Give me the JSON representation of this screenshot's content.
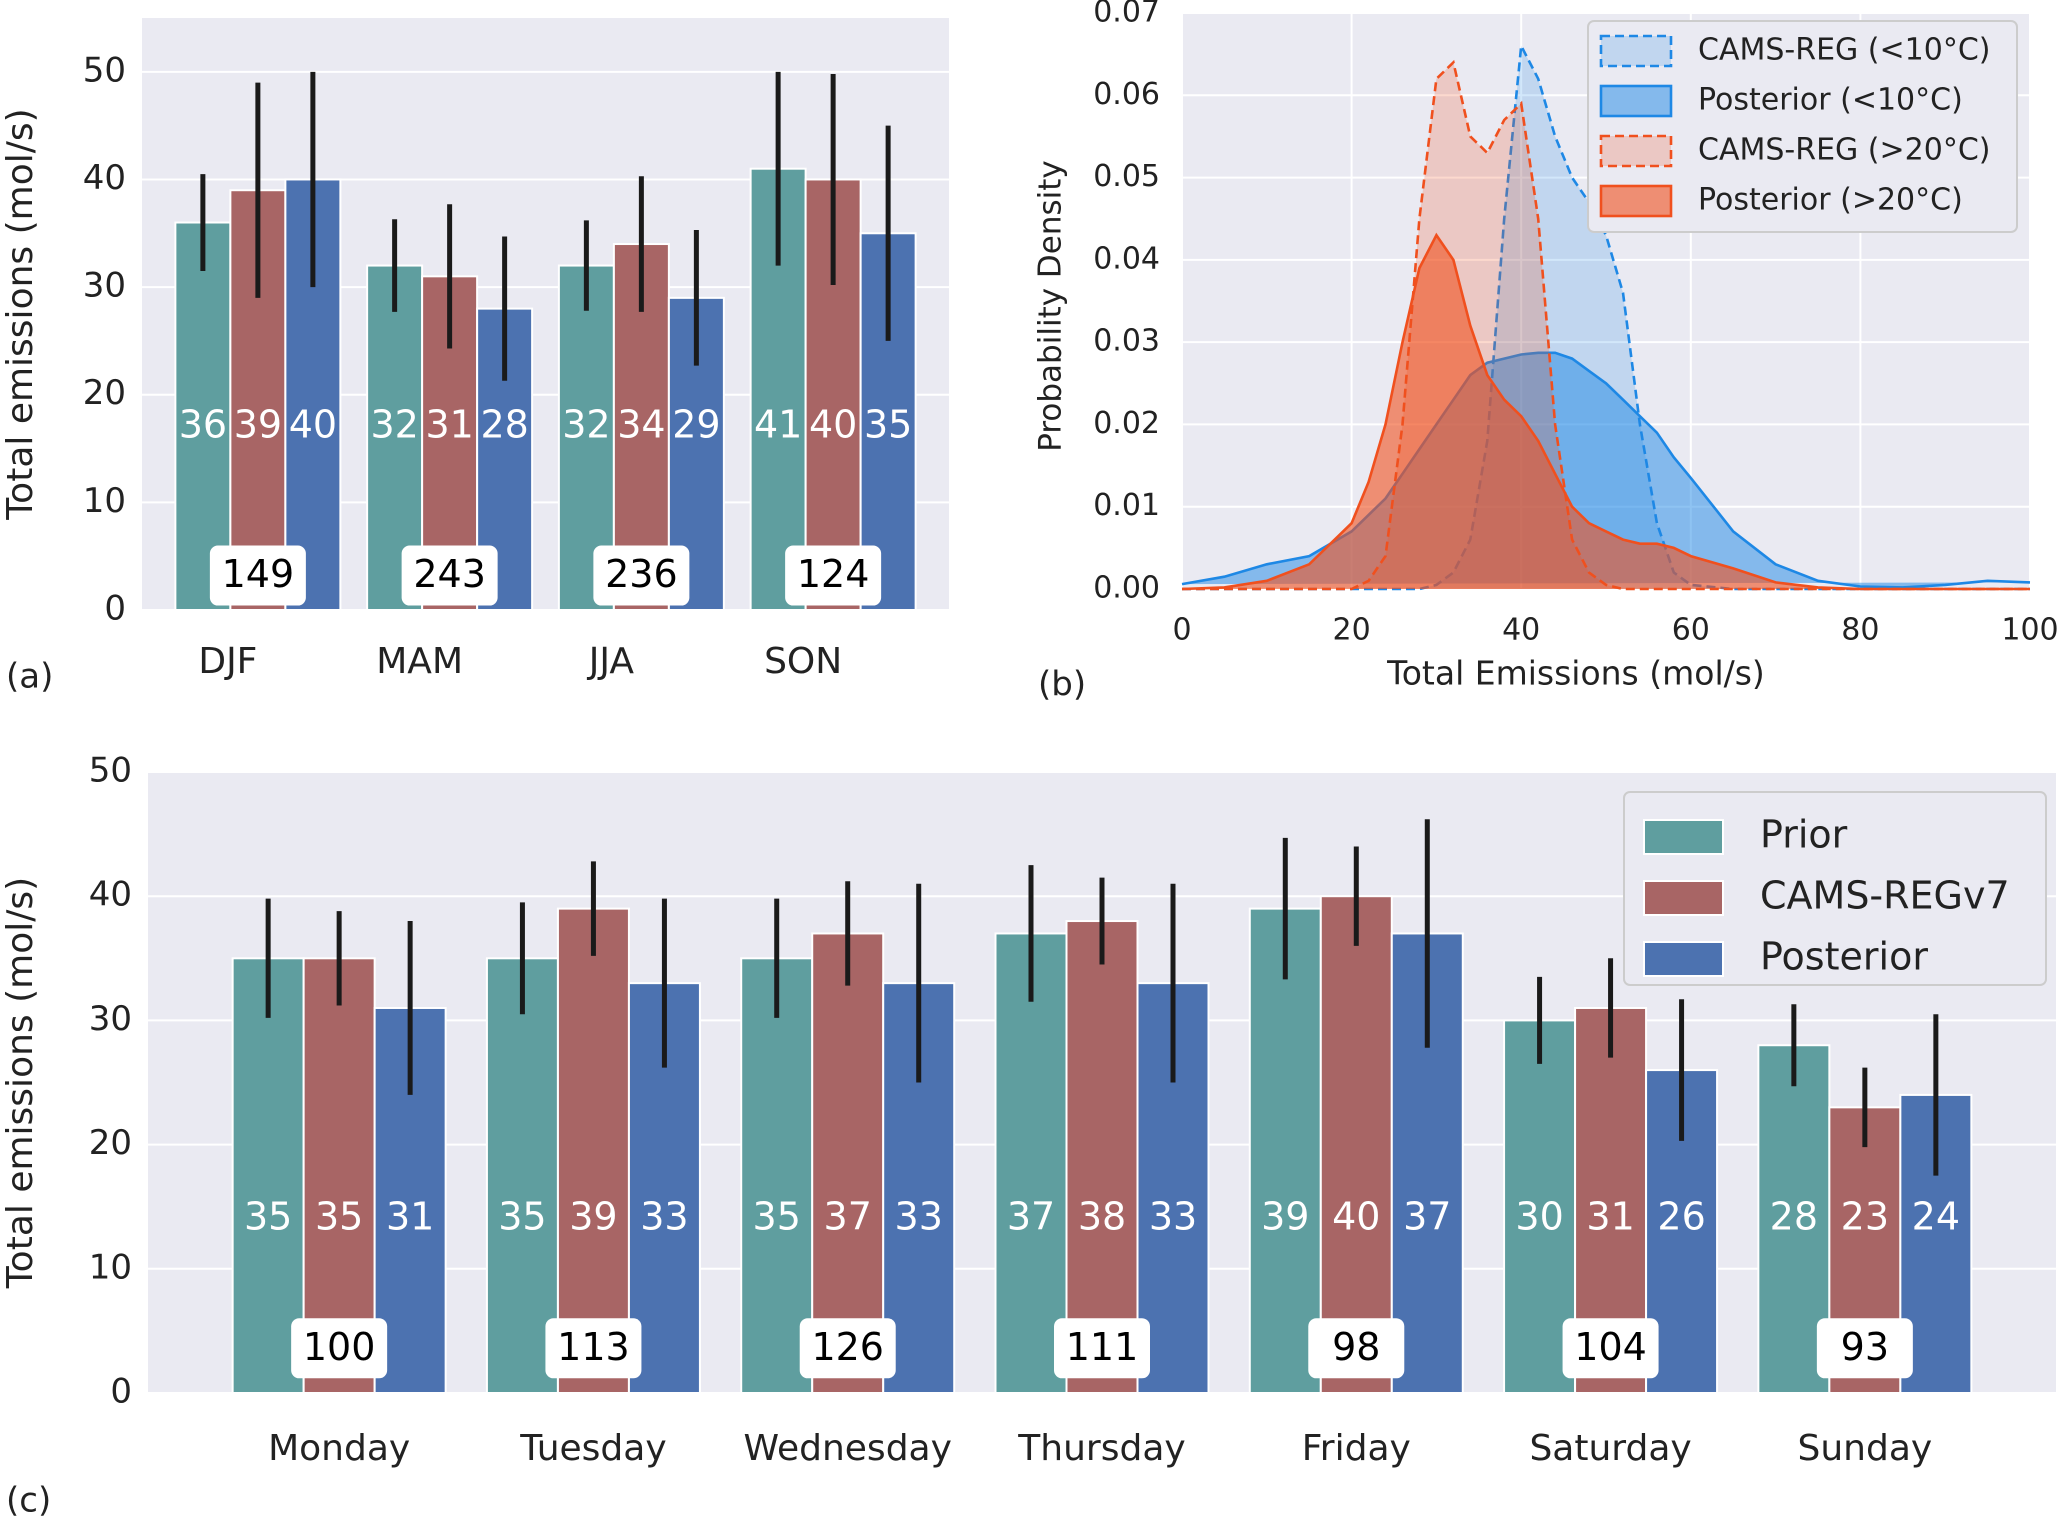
{
  "chart_data": [
    {
      "type": "bar",
      "panel_label": "(a)",
      "y_label": "Total emissions (mol/s)",
      "categories": [
        "DJF",
        "MAM",
        "JJA",
        "SON"
      ],
      "series": [
        {
          "color": "#5f9e9f",
          "values": [
            36,
            32,
            32,
            41
          ],
          "errors": [
            4.5,
            4.3,
            4.2,
            9
          ]
        },
        {
          "color": "#a86565",
          "values": [
            39,
            31,
            34,
            40
          ],
          "errors": [
            10,
            6.7,
            6.3,
            9.8
          ]
        },
        {
          "color": "#4c72b0",
          "values": [
            40,
            28,
            29,
            35
          ],
          "errors": [
            10,
            6.7,
            6.3,
            10
          ]
        }
      ],
      "counts": [
        149,
        243,
        236,
        124
      ],
      "ylim": [
        0,
        55
      ],
      "yticks": [
        0,
        10,
        20,
        30,
        40,
        50
      ],
      "grid": "y"
    },
    {
      "type": "density",
      "panel_label": "(b)",
      "x_label": "Total Emissions (mol/s)",
      "y_label": "Probability Density",
      "x": [
        0,
        5,
        10,
        15,
        20,
        22,
        24,
        26,
        28,
        30,
        32,
        34,
        36,
        38,
        40,
        42,
        44,
        46,
        48,
        50,
        52,
        54,
        56,
        58,
        60,
        65,
        70,
        75,
        80,
        85,
        90,
        95,
        100
      ],
      "series": [
        {
          "name": "CAMS-REG (<10°C)",
          "color": "#1e88e5",
          "dashed": true,
          "fill_opacity": 0.2,
          "values": [
            0,
            0,
            0,
            0,
            0,
            0,
            0,
            0,
            0,
            0.0005,
            0.002,
            0.006,
            0.018,
            0.045,
            0.066,
            0.062,
            0.055,
            0.05,
            0.047,
            0.043,
            0.036,
            0.02,
            0.008,
            0.002,
            0.0005,
            0,
            0,
            0,
            0,
            0,
            0,
            0,
            0
          ]
        },
        {
          "name": "Posterior (<10°C)",
          "color": "#1e88e5",
          "dashed": false,
          "fill_opacity": 0.5,
          "values": [
            0.0006,
            0.0015,
            0.003,
            0.004,
            0.007,
            0.009,
            0.011,
            0.014,
            0.017,
            0.02,
            0.023,
            0.026,
            0.0275,
            0.028,
            0.0285,
            0.0287,
            0.0287,
            0.028,
            0.0265,
            0.025,
            0.023,
            0.021,
            0.019,
            0.016,
            0.0135,
            0.007,
            0.003,
            0.001,
            0.0003,
            0.0002,
            0.0005,
            0.001,
            0.0008
          ]
        },
        {
          "name": "CAMS-REG (>20°C)",
          "color": "#f0501e",
          "dashed": true,
          "fill_opacity": 0.22,
          "values": [
            0,
            0,
            0,
            0,
            0,
            0.001,
            0.004,
            0.02,
            0.045,
            0.062,
            0.064,
            0.055,
            0.053,
            0.057,
            0.059,
            0.045,
            0.02,
            0.006,
            0.002,
            0.0005,
            0,
            0,
            0,
            0,
            0,
            0,
            0,
            0,
            0,
            0,
            0,
            0,
            0
          ]
        },
        {
          "name": "Posterior (>20°C)",
          "color": "#f0501e",
          "dashed": false,
          "fill_opacity": 0.6,
          "values": [
            0,
            0.0002,
            0.001,
            0.003,
            0.008,
            0.013,
            0.02,
            0.03,
            0.039,
            0.043,
            0.04,
            0.032,
            0.026,
            0.023,
            0.021,
            0.018,
            0.014,
            0.01,
            0.008,
            0.007,
            0.006,
            0.0055,
            0.0055,
            0.005,
            0.004,
            0.0025,
            0.0008,
            0.0002,
            0,
            0,
            0,
            0,
            0
          ]
        }
      ],
      "xlim": [
        0,
        100
      ],
      "xticks": [
        0,
        20,
        40,
        60,
        80,
        100
      ],
      "ylim": [
        0,
        0.07
      ],
      "yticks": [
        {
          "value": 0,
          "label": "0.00"
        },
        {
          "value": 0.01,
          "label": "0.01"
        },
        {
          "value": 0.02,
          "label": "0.02"
        },
        {
          "value": 0.03,
          "label": "0.03"
        },
        {
          "value": 0.04,
          "label": "0.04"
        },
        {
          "value": 0.05,
          "label": "0.05"
        },
        {
          "value": 0.06,
          "label": "0.06"
        },
        {
          "value": 0.07,
          "label": "0.07"
        }
      ],
      "grid": "both",
      "legend": "upper right"
    },
    {
      "type": "bar",
      "panel_label": "(c)",
      "y_label": "Total emissions (mol/s)",
      "categories": [
        "Monday",
        "Tuesday",
        "Wednesday",
        "Thursday",
        "Friday",
        "Saturday",
        "Sunday"
      ],
      "series": [
        {
          "name": "Prior",
          "color": "#5f9e9f",
          "values": [
            35,
            35,
            35,
            37,
            39,
            30,
            28
          ],
          "errors": [
            4.8,
            4.5,
            4.8,
            5.5,
            5.7,
            3.5,
            3.3
          ]
        },
        {
          "name": "CAMS-REGv7",
          "color": "#a86565",
          "values": [
            35,
            39,
            37,
            38,
            40,
            31,
            23
          ],
          "errors": [
            3.8,
            3.8,
            4.2,
            3.5,
            4,
            4,
            3.2
          ]
        },
        {
          "name": "Posterior",
          "color": "#4c72b0",
          "values": [
            31,
            33,
            33,
            33,
            37,
            26,
            24
          ],
          "errors": [
            7,
            6.8,
            8,
            8,
            9.2,
            5.7,
            6.5
          ]
        }
      ],
      "counts": [
        100,
        113,
        126,
        111,
        98,
        104,
        93
      ],
      "ylim": [
        0,
        50
      ],
      "yticks": [
        0,
        10,
        20,
        30,
        40,
        50
      ],
      "grid": "y",
      "legend": "upper right"
    }
  ]
}
